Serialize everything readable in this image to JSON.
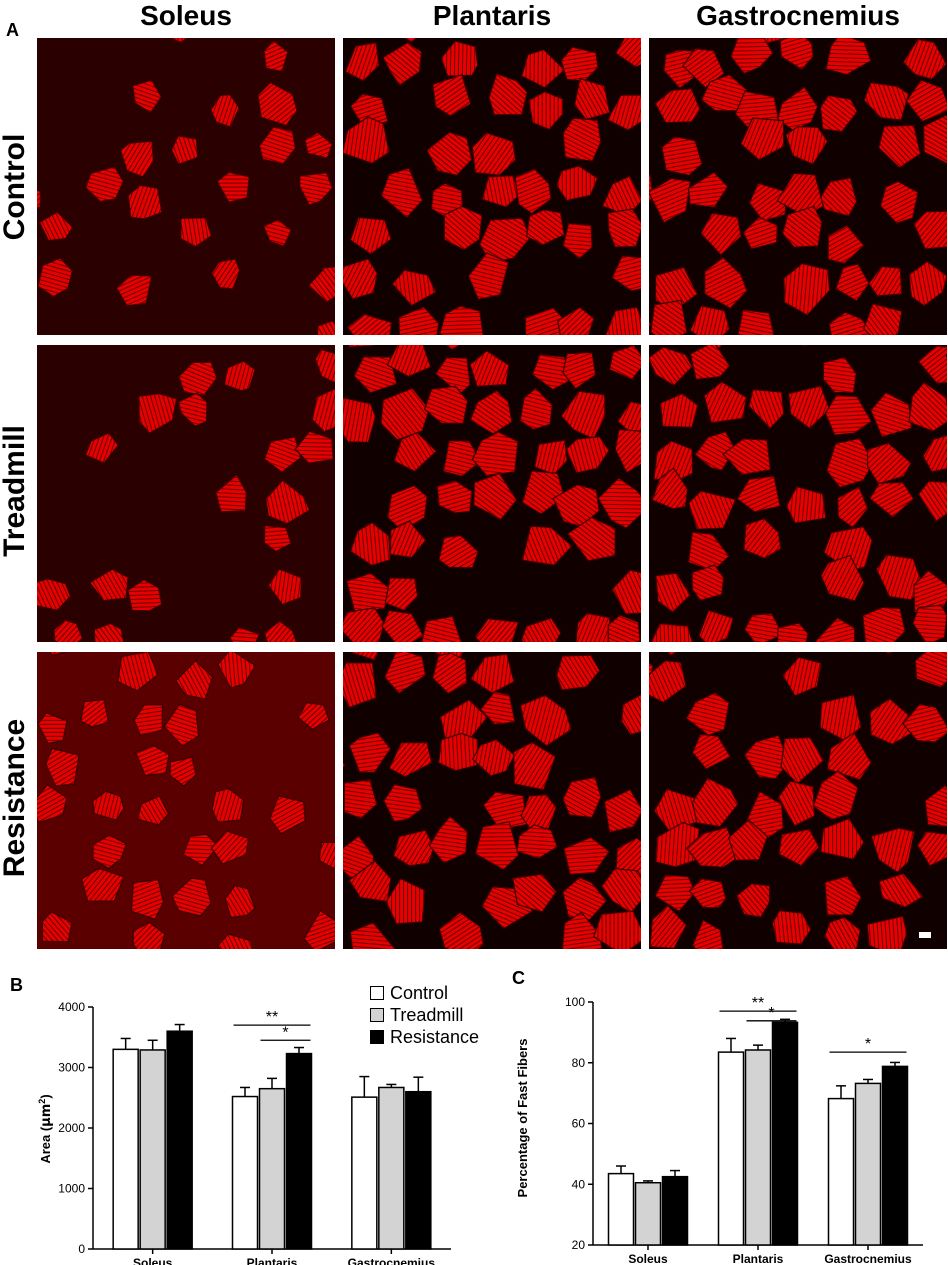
{
  "panel_a": {
    "letter": "A",
    "columns": [
      "Soleus",
      "Plantaris",
      "Gastrocnemius"
    ],
    "rows": [
      "Control",
      "Treadmill",
      "Resistance"
    ]
  },
  "legend": {
    "items": [
      {
        "label": "Control",
        "color": "#ffffff"
      },
      {
        "label": "Treadmill",
        "color": "#d3d3d3"
      },
      {
        "label": "Resistance",
        "color": "#000000"
      }
    ]
  },
  "chart_data": [
    {
      "panel": "B",
      "type": "bar",
      "categories": [
        "Soleus",
        "Plantaris",
        "Gastrocnemius"
      ],
      "ylabel_text": "Area (",
      "ylabel_unit": "μm",
      "ylabel_sup": "2",
      "ylabel_close": ")",
      "ylim": [
        0,
        4000
      ],
      "yticks": [
        0,
        1000,
        2000,
        3000,
        4000
      ],
      "series": [
        {
          "name": "Control",
          "color": "#ffffff",
          "values": [
            3300,
            2520,
            2510
          ],
          "errors": [
            180,
            150,
            340
          ]
        },
        {
          "name": "Treadmill",
          "color": "#d3d3d3",
          "values": [
            3290,
            2650,
            2670
          ],
          "errors": [
            160,
            170,
            50
          ]
        },
        {
          "name": "Resistance",
          "color": "#000000",
          "values": [
            3600,
            3230,
            2600
          ],
          "errors": [
            110,
            100,
            240
          ]
        }
      ],
      "significance": [
        {
          "label": "**",
          "category": 1,
          "from": 0,
          "to": 2,
          "y": 3700
        },
        {
          "label": "*",
          "category": 1,
          "from": 1,
          "to": 2,
          "y": 3450
        }
      ]
    },
    {
      "panel": "C",
      "type": "bar",
      "categories": [
        "Soleus",
        "Plantaris",
        "Gastrocnemius"
      ],
      "ylabel": "Percentage of Fast Fibers",
      "ylim": [
        20,
        100
      ],
      "yticks": [
        20,
        40,
        60,
        80,
        100
      ],
      "series": [
        {
          "name": "Control",
          "color": "#ffffff",
          "values": [
            43.5,
            83.5,
            68.2
          ],
          "errors": [
            2.5,
            4.5,
            4.2
          ]
        },
        {
          "name": "Treadmill",
          "color": "#d3d3d3",
          "values": [
            40.5,
            84.2,
            73.2
          ],
          "errors": [
            0.6,
            1.6,
            1.3
          ]
        },
        {
          "name": "Resistance",
          "color": "#000000",
          "values": [
            42.5,
            93.3,
            78.8
          ],
          "errors": [
            2.0,
            1.0,
            1.3
          ]
        }
      ],
      "significance": [
        {
          "label": "**",
          "category": 1,
          "from": 0,
          "to": 2,
          "y": 97
        },
        {
          "label": "*",
          "category": 1,
          "from": 1,
          "to": 2,
          "y": 93.8
        },
        {
          "label": "*",
          "category": 2,
          "from": 0,
          "to": 2,
          "y": 83.5
        }
      ]
    }
  ]
}
